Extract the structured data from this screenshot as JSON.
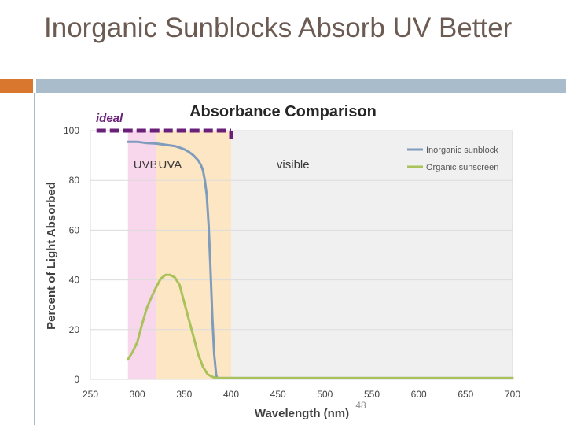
{
  "slide": {
    "title": "Inorganic Sunblocks Absorb UV Better",
    "page_number": "48",
    "accent_color": "#d9772f",
    "bar_color": "#a8bccc"
  },
  "chart_data": {
    "type": "line",
    "title": "Absorbance Comparison",
    "xlabel": "Wavelength (nm)",
    "ylabel": "Percent of Light Absorbed",
    "xlim": [
      250,
      700
    ],
    "ylim": [
      0,
      100
    ],
    "xticks": [
      250,
      300,
      350,
      400,
      450,
      500,
      550,
      600,
      650,
      700
    ],
    "yticks": [
      0,
      20,
      40,
      60,
      80,
      100
    ],
    "grid": "horizontal",
    "legend_position": "top-right",
    "bands": [
      {
        "label": "UVB",
        "from": 290,
        "to": 320,
        "color": "#f8d7ec"
      },
      {
        "label": "UVA",
        "from": 320,
        "to": 400,
        "color": "#fde6c4"
      },
      {
        "label": "visible",
        "from": 400,
        "to": 700,
        "color": "#f0f0f0"
      }
    ],
    "ideal": {
      "label": "ideal",
      "from": 290,
      "to": 400,
      "y": 100,
      "color": "#6a1f78"
    },
    "series": [
      {
        "name": "Inorganic sunblock",
        "color": "#7f9cbd",
        "x": [
          290,
          300,
          310,
          320,
          330,
          340,
          345,
          350,
          355,
          360,
          365,
          368,
          370,
          372,
          374,
          376,
          378,
          380,
          382,
          384,
          385,
          400,
          500,
          600,
          700
        ],
        "y": [
          95.5,
          95.5,
          95.0,
          94.8,
          94.3,
          93.8,
          93.2,
          92.5,
          91.5,
          90.0,
          88.0,
          86.0,
          84.0,
          80.0,
          74.0,
          62.0,
          45.0,
          25.0,
          10.0,
          2.0,
          0.5,
          0.5,
          0.5,
          0.5,
          0.5
        ]
      },
      {
        "name": "Organic sunscreen",
        "color": "#a9c25a",
        "x": [
          290,
          295,
          300,
          305,
          310,
          315,
          320,
          325,
          330,
          335,
          340,
          345,
          350,
          355,
          360,
          365,
          370,
          375,
          380,
          385,
          390,
          400,
          500,
          600,
          700
        ],
        "y": [
          8.0,
          11.0,
          15.0,
          22.0,
          28.5,
          33.0,
          37.0,
          40.5,
          42.0,
          42.0,
          41.0,
          38.0,
          31.0,
          24.0,
          17.0,
          10.0,
          5.0,
          2.0,
          1.0,
          0.5,
          0.5,
          0.5,
          0.5,
          0.5,
          0.5
        ]
      }
    ]
  }
}
